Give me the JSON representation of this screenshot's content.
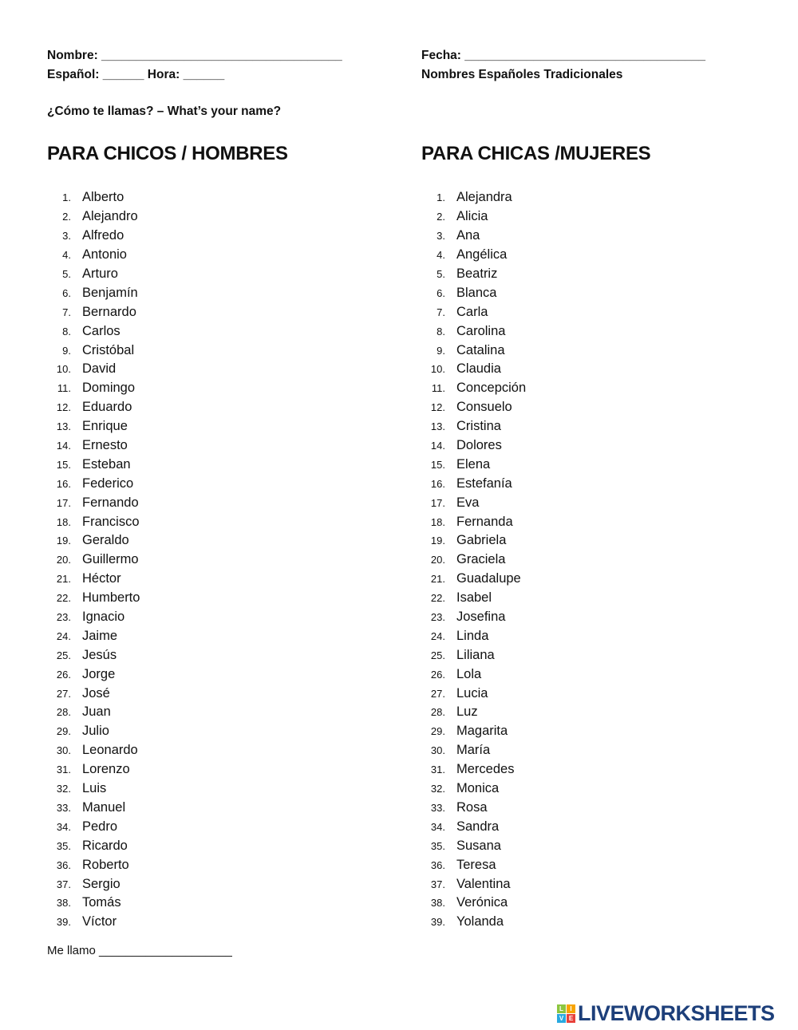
{
  "header": {
    "nombre": "Nombre: ___________________________________",
    "espanol_hora": "Español: ______ Hora: ______",
    "fecha": "Fecha: ___________________________________",
    "subtitle": "Nombres Españoles Tradicionales",
    "question": "¿Cómo te llamas? – What’s your name?"
  },
  "boys": {
    "title": "PARA CHICOS / HOMBRES",
    "names": [
      "Alberto",
      "Alejandro",
      "Alfredo",
      "Antonio",
      "Arturo",
      "Benjamín",
      "Bernardo",
      "Carlos",
      "Cristóbal",
      "David",
      "Domingo",
      "Eduardo",
      "Enrique",
      "Ernesto",
      "Esteban",
      "Federico",
      "Fernando",
      "Francisco",
      "Geraldo",
      "Guillermo",
      "Héctor",
      "Humberto",
      "Ignacio",
      "Jaime",
      "Jesús",
      "Jorge",
      "José",
      "Juan",
      "Julio",
      "Leonardo",
      "Lorenzo",
      "Luis",
      "Manuel",
      "Pedro",
      "Ricardo",
      "Roberto",
      "Sergio",
      "Tomás",
      "Víctor"
    ]
  },
  "girls": {
    "title": "PARA CHICAS /MUJERES",
    "names": [
      "Alejandra",
      "Alicia",
      "Ana",
      "Angélica",
      "Beatriz",
      "Blanca",
      "Carla",
      "Carolina",
      "Catalina",
      "Claudia",
      "Concepción",
      "Consuelo",
      "Cristina",
      "Dolores",
      "Elena",
      "Estefanía",
      "Eva",
      "Fernanda",
      "Gabriela",
      "Graciela",
      "Guadalupe",
      "Isabel",
      "Josefina",
      "Linda",
      "Liliana",
      "Lola",
      "Lucia",
      "Luz",
      "Magarita",
      "María",
      "Mercedes",
      "Monica",
      "Rosa",
      "Sandra",
      "Susana",
      "Teresa",
      "Valentina",
      "Verónica",
      "Yolanda"
    ]
  },
  "footer": {
    "me_llamo": "Me llamo ____________________",
    "logo": "LIVEWORKSHEETS",
    "logo_tiles": [
      "L",
      "I",
      "V",
      "E"
    ],
    "logo_color": "#1d3f7a"
  }
}
